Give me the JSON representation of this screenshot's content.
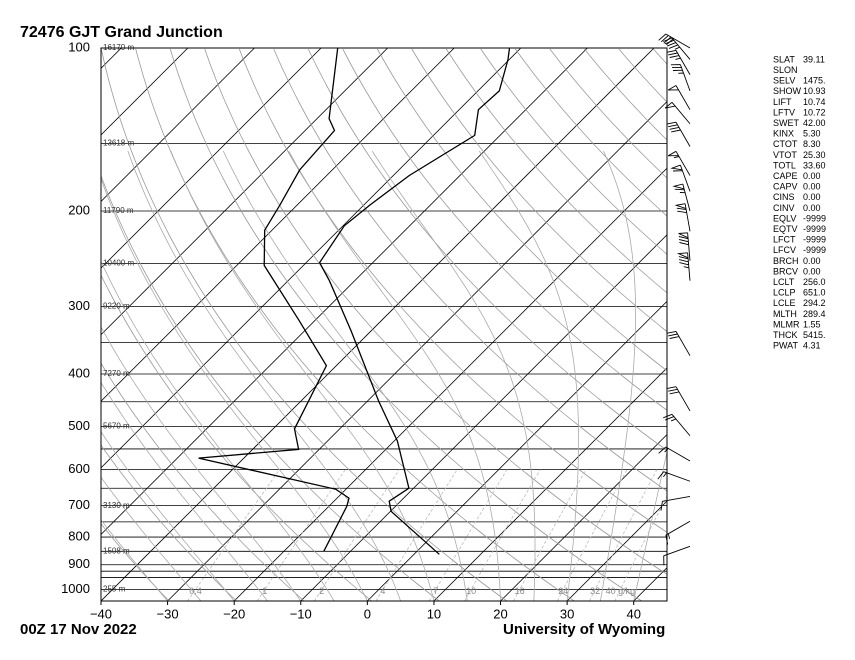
{
  "chart_data": {
    "type": "skewt",
    "title": "72476 GJT Grand Junction",
    "footer_left": "00Z 17 Nov 2022",
    "footer_right": "University of Wyoming",
    "xlim": [
      -40,
      45
    ],
    "xticks": [
      {
        "value": -40,
        "label": "−40"
      },
      {
        "value": -30,
        "label": "−30"
      },
      {
        "value": -20,
        "label": "−20"
      },
      {
        "value": -10,
        "label": "−10"
      },
      0,
      10,
      20,
      30,
      40
    ],
    "ylim": [
      1050,
      100
    ],
    "log_y": true,
    "yticks": [
      100,
      200,
      300,
      400,
      500,
      600,
      700,
      800,
      900,
      1000
    ],
    "isobars": [
      100,
      150,
      200,
      250,
      300,
      350,
      400,
      450,
      500,
      550,
      600,
      650,
      700,
      750,
      800,
      850,
      900,
      925,
      950,
      1000
    ],
    "height_labels": [
      {
        "pressure": 100,
        "label": "16170 m"
      },
      {
        "pressure": 150,
        "label": "13618 m"
      },
      {
        "pressure": 200,
        "label": "11790 m"
      },
      {
        "pressure": 250,
        "label": "10400 m"
      },
      {
        "pressure": 300,
        "label": "9220 m"
      },
      {
        "pressure": 400,
        "label": "7270 m"
      },
      {
        "pressure": 500,
        "label": "5670 m"
      },
      {
        "pressure": 700,
        "label": "3130 m"
      },
      {
        "pressure": 850,
        "label": "1508 m"
      },
      {
        "pressure": 1000,
        "label": "255 m"
      }
    ],
    "mixing_ratios": [
      0.4,
      1,
      2,
      4,
      7,
      10,
      16,
      24,
      32,
      {
        "value": 40,
        "label": "40 g/kg"
      }
    ],
    "series": [
      {
        "color": "#000000",
        "pressure": [
          861,
          717,
          687,
          650,
          532,
          449,
          333,
          269,
          249,
          213,
          195,
          172,
          145,
          130,
          120,
          105,
          100
        ],
        "values": [
          3.8,
          -9.9,
          -11.7,
          -10.7,
          -19.5,
          -28.3,
          -43.0,
          -53.8,
          -58.0,
          -59.8,
          -59.1,
          -57.6,
          -53.8,
          -57.1,
          -56.8,
          -60.2,
          -61.7
        ]
      },
      {
        "color": "#000000",
        "pressure": [
          850,
          702,
          678,
          653,
          572,
          551,
          505,
          386,
          319,
          252,
          217,
          195,
          168,
          142,
          135,
          100
        ],
        "values": [
          -14.0,
          -17.3,
          -18.2,
          -21.5,
          -46.8,
          -33.1,
          -36.8,
          -41.5,
          -52.3,
          -65.9,
          -71.1,
          -72.6,
          -74.9,
          -75.6,
          -78.2,
          -87.5
        ]
      }
    ],
    "wind_barbs": {
      "pressure": [
        100,
        105,
        112,
        120,
        130,
        138,
        152,
        172,
        184,
        200,
        218,
        247,
        269,
        370,
        468,
        520,
        579,
        631,
        673,
        748,
        832
      ],
      "direction": [
        300,
        320,
        330,
        340,
        330,
        320,
        330,
        330,
        340,
        345,
        350,
        355,
        355,
        330,
        330,
        320,
        300,
        290,
        260,
        240,
        250
      ],
      "speed": [
        40,
        45,
        35,
        35,
        50,
        50,
        40,
        55,
        60,
        65,
        70,
        80,
        85,
        30,
        30,
        25,
        15,
        15,
        10,
        15,
        10
      ]
    }
  },
  "indices": {
    "rows": [
      [
        "SLAT",
        "39.11"
      ],
      [
        "SLON",
        ""
      ],
      [
        "SELV",
        "1475."
      ],
      [
        "SHOW",
        "10.93"
      ],
      [
        "LIFT",
        "10.74"
      ],
      [
        "LFTV",
        "10.72"
      ],
      [
        "SWET",
        "42.00"
      ],
      [
        "KINX",
        "5.30"
      ],
      [
        "CTOT",
        "8.30"
      ],
      [
        "VTOT",
        "25.30"
      ],
      [
        "TOTL",
        "33.60"
      ],
      [
        "CAPE",
        "0.00"
      ],
      [
        "CAPV",
        "0.00"
      ],
      [
        "CINS",
        "0.00"
      ],
      [
        "CINV",
        "0.00"
      ],
      [
        "EQLV",
        "-9999"
      ],
      [
        "EQTV",
        "-9999"
      ],
      [
        "LFCT",
        "-9999"
      ],
      [
        "LFCV",
        "-9999"
      ],
      [
        "BRCH",
        "0.00"
      ],
      [
        "BRCV",
        "0.00"
      ],
      [
        "LCLT",
        "256.0"
      ],
      [
        "LCLP",
        "651.0"
      ],
      [
        "LCLE",
        "294.2"
      ],
      [
        "MLTH",
        "289.4"
      ],
      [
        "MLMR",
        "1.55"
      ],
      [
        "THCK",
        "5415."
      ],
      [
        "PWAT",
        "4.31"
      ]
    ]
  }
}
